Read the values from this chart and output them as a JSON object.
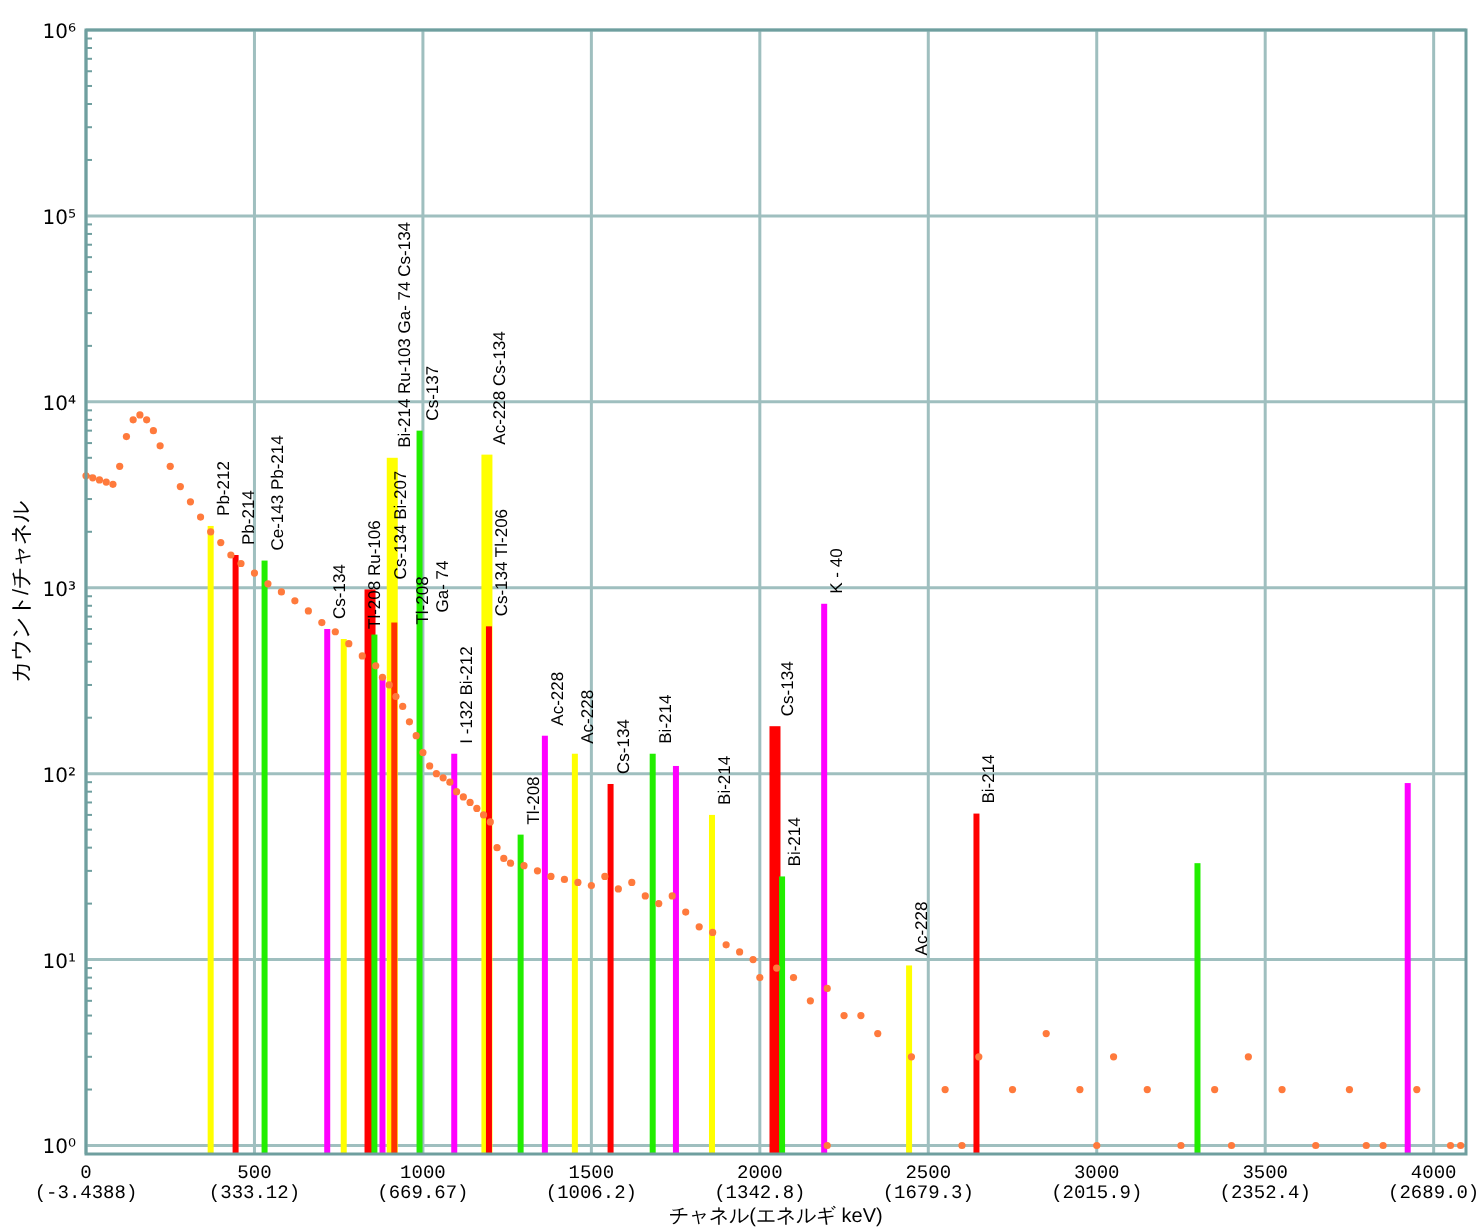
{
  "chart_data": {
    "type": "scatter",
    "xlabel": "チャネル(エネルギ keV)",
    "ylabel": "カウント/チャネル",
    "log": "y",
    "grid": true,
    "xlim": [
      0,
      4096
    ],
    "ylim": [
      0.9,
      1000000
    ],
    "xticks": [
      0,
      500,
      1000,
      1500,
      2000,
      2500,
      3000,
      3500,
      4000
    ],
    "x2lim": [
      -3.4388,
      2753.6
    ],
    "x2ticks": [
      {
        "value": -3.4388,
        "label": "(-3.4388)"
      },
      {
        "value": 333.12,
        "label": "(333.12)"
      },
      {
        "value": 669.67,
        "label": "(669.67)"
      },
      {
        "value": 1006.2,
        "label": "(1006.2)"
      },
      {
        "value": 1342.8,
        "label": "(1342.8)"
      },
      {
        "value": 1679.3,
        "label": "(1679.3)"
      },
      {
        "value": 2015.9,
        "label": "(2015.9)"
      },
      {
        "value": 2352.4,
        "label": "(2352.4)"
      },
      {
        "value": 2689.0,
        "label": "(2689.0)"
      }
    ],
    "yticks": [
      {
        "value": 1,
        "label": "10⁰"
      },
      {
        "value": 10,
        "label": "10¹"
      },
      {
        "value": 100,
        "label": "10²"
      },
      {
        "value": 1000,
        "label": "10³"
      },
      {
        "value": 10000,
        "label": "10⁴"
      },
      {
        "value": 100000,
        "label": "10⁵"
      },
      {
        "value": 1000000,
        "label": "10⁶"
      }
    ],
    "series": [
      {
        "color": "#ff7a3c",
        "x": [
          0,
          20,
          40,
          60,
          80,
          100,
          120,
          140,
          160,
          180,
          200,
          220,
          250,
          280,
          310,
          340,
          370,
          400,
          430,
          460,
          500,
          540,
          580,
          620,
          660,
          700,
          740,
          780,
          820,
          860,
          880,
          900,
          920,
          940,
          960,
          980,
          1000,
          1020,
          1040,
          1060,
          1080,
          1100,
          1120,
          1140,
          1160,
          1180,
          1200,
          1220,
          1240,
          1260,
          1300,
          1340,
          1380,
          1420,
          1460,
          1500,
          1540,
          1580,
          1620,
          1660,
          1700,
          1740,
          1780,
          1820,
          1860,
          1900,
          1940,
          1980,
          2000,
          2050,
          2100,
          2150,
          2200,
          2250,
          2300,
          2350,
          2450,
          2550,
          2650,
          2750,
          2850,
          2950,
          3050,
          3150,
          3250,
          3350,
          3450,
          3550,
          3650,
          3750,
          3850,
          3950,
          4050,
          2200,
          2600,
          3000,
          3400,
          3800,
          4080
        ],
        "values": [
          4000,
          3900,
          3800,
          3700,
          3600,
          4500,
          6500,
          8000,
          8500,
          8000,
          7000,
          5800,
          4500,
          3500,
          2900,
          2400,
          2000,
          1750,
          1500,
          1350,
          1200,
          1050,
          950,
          850,
          750,
          650,
          580,
          500,
          430,
          380,
          330,
          300,
          260,
          230,
          190,
          160,
          130,
          110,
          100,
          95,
          90,
          80,
          75,
          70,
          65,
          60,
          55,
          40,
          35,
          33,
          32,
          30,
          28,
          27,
          26,
          25,
          28,
          24,
          26,
          22,
          20,
          22,
          18,
          15,
          14,
          12,
          11,
          10,
          8,
          9,
          8,
          6,
          7,
          5,
          5,
          4,
          3,
          2,
          3,
          2,
          4,
          2,
          3,
          2,
          1,
          2,
          3,
          2,
          1,
          2,
          1,
          2,
          1,
          1,
          1,
          1,
          1,
          1,
          1
        ]
      },
      {
        "type": "bar",
        "x": [
          370,
          444,
          530,
          716,
          765,
          843,
          856,
          880,
          909,
          915,
          990,
          1093,
          1190,
          1196,
          1290,
          1362,
          1451,
          1557,
          1682,
          1751,
          1858,
          2045,
          2066,
          2191,
          2443,
          2643,
          3299,
          3923
        ],
        "values": [
          2150,
          1500,
          1400,
          600,
          530,
          980,
          560,
          330,
          5000,
          650,
          7000,
          128,
          5200,
          620,
          47,
          160,
          128,
          88,
          128,
          110,
          60,
          180,
          28,
          820,
          9.3,
          61,
          33,
          89
        ],
        "colors": [
          "#ffff00",
          "#ff0000",
          "#22ee00",
          "#ff00ff",
          "#ffff00",
          "#ff0000",
          "#22ee00",
          "#ff00ff",
          "#ffff00",
          "#ff3300",
          "#22ee00",
          "#ff00ff",
          "#ffff00",
          "#ff0000",
          "#22ee00",
          "#ff00ff",
          "#ffff00",
          "#ff0000",
          "#22ee00",
          "#ff00ff",
          "#ffff00",
          "#ff0000",
          "#22ee00",
          "#ff00ff",
          "#ffff00",
          "#ff0000",
          "#22ee00",
          "#ff00ff"
        ]
      }
    ],
    "annotations": [
      {
        "text": "Pb-212",
        "x": 370,
        "y": 2150
      },
      {
        "text": "Pb-214",
        "x": 444,
        "y": 1500
      },
      {
        "text": "Ce-143  Pb-214",
        "x": 530,
        "y": 1400
      },
      {
        "text": "Cs-134",
        "x": 716,
        "y": 600
      },
      {
        "text": "Tl-208  Ru-106",
        "x": 765,
        "y": 530
      },
      {
        "text": "Cs-134  Bi-207",
        "x": 843,
        "y": 980
      },
      {
        "text": "Tl-208",
        "x": 856,
        "y": 560
      },
      {
        "text": "Bi-214  Ru-103  Ga- 74  Cs-134",
        "x": 909,
        "y": 5000
      },
      {
        "text": "Ga- 74",
        "x": 915,
        "y": 650
      },
      {
        "text": "Cs-137",
        "x": 990,
        "y": 7000
      },
      {
        "text": "I -132  Bi-212",
        "x": 1093,
        "y": 128
      },
      {
        "text": "Ac-228  Cs-134",
        "x": 1190,
        "y": 5200
      },
      {
        "text": "Cs-134  Tl-206",
        "x": 1196,
        "y": 620
      },
      {
        "text": "Tl-208",
        "x": 1290,
        "y": 47
      },
      {
        "text": "Ac-228",
        "x": 1362,
        "y": 160
      },
      {
        "text": "Ac-228",
        "x": 1451,
        "y": 128
      },
      {
        "text": "Cs-134",
        "x": 1557,
        "y": 88
      },
      {
        "text": "Bi-214",
        "x": 1682,
        "y": 128
      },
      {
        "text": "Bi-214",
        "x": 1858,
        "y": 60
      },
      {
        "text": "Cs-134",
        "x": 2045,
        "y": 180
      },
      {
        "text": "Bi-214",
        "x": 2066,
        "y": 28
      },
      {
        "text": "K - 40",
        "x": 2191,
        "y": 820
      },
      {
        "text": "Ac-228",
        "x": 2443,
        "y": 9.3
      },
      {
        "text": "Bi-214",
        "x": 2643,
        "y": 61
      }
    ]
  }
}
